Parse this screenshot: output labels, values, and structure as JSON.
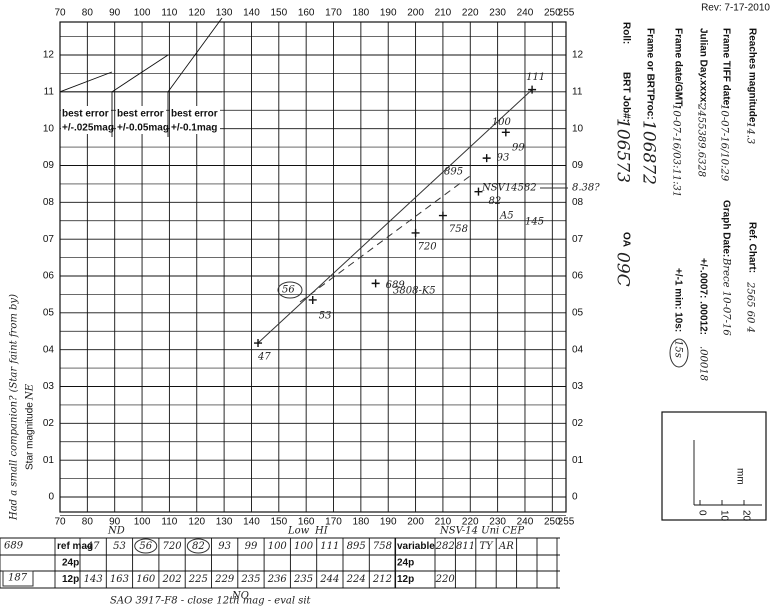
{
  "revision": "Rev: 7-17-2010",
  "form": {
    "roll_label": "Roll:",
    "job_label": "BRT Job#:",
    "job": "106573",
    "oa_label": "OA",
    "oa": "09C",
    "frame_label": "Frame or BRTProc:",
    "frame": "106872",
    "date_label": "Frame date/GMT:",
    "date": "10-07-16/03:11:31",
    "min_label": "+/-1 min: 10s:",
    "min": "15s",
    "jd_label": "Julian Day.xxxx:",
    "jd": "2455389.6328",
    "jd_err_label": "+/-.0007: .00012:",
    "jd_err": ".00018",
    "tiff_label": "Frame TIFF date:",
    "tiff": "10-07-16/10:29",
    "graph_label": "Graph Date:",
    "graph": "Brece 10-07-16",
    "reach_label": "Reaches magnitude:",
    "reach": "14.3",
    "chart_label": "Ref. Chart:",
    "chart": "2565 60 4"
  },
  "scale_box": {
    "unit": "mm",
    "ticks": [
      "0",
      "10",
      "20"
    ]
  },
  "plot": {
    "xticks": [
      70,
      80,
      90,
      100,
      110,
      120,
      130,
      140,
      150,
      160,
      170,
      180,
      190,
      200,
      210,
      220,
      230,
      240,
      250,
      255
    ],
    "yticks": [
      12,
      11,
      10,
      {
        "value": 9,
        "label": "09"
      },
      {
        "value": 8,
        "label": "08"
      },
      {
        "value": 7,
        "label": "07"
      },
      {
        "value": 6,
        "label": "06"
      },
      {
        "value": 5,
        "label": "05"
      },
      {
        "value": 4,
        "label": "04"
      },
      {
        "value": 3,
        "label": "03"
      },
      {
        "value": 2,
        "label": "02"
      },
      {
        "value": 1,
        "label": "01"
      },
      0
    ],
    "y_label": "Star magnitude",
    "y_note": "NE",
    "side_note": "Had a small companion? (Star faint from by)",
    "error_labels": [
      {
        "title": "best error",
        "value": "+/-.025mag"
      },
      {
        "title": "best error",
        "value": "+/-0.05mag"
      },
      {
        "title": "best error",
        "value": "+/-0.1mag"
      }
    ],
    "points": [
      {
        "x": 142.4,
        "y": 4.18,
        "label": "47"
      },
      {
        "x": 162.4,
        "y": 5.35,
        "label": "53"
      },
      {
        "x": 185.4,
        "y": 5.8,
        "label": "689"
      },
      {
        "x": 200,
        "y": 7.17,
        "label": "720"
      },
      {
        "x": 210,
        "y": 7.64,
        "label": "758"
      },
      {
        "x": 223,
        "y": 8.29,
        "label": "82"
      },
      {
        "x": 226,
        "y": 9.2,
        "label": "93"
      },
      {
        "x": 233,
        "y": 9.9,
        "label": "100"
      },
      {
        "x": 242.6,
        "y": 11.06,
        "label": "111"
      }
    ],
    "annotations": [
      "56",
      "895",
      "99",
      "NSV14582",
      "8.38?",
      "A5",
      "145",
      "3808-K5"
    ]
  },
  "table": {
    "id": "689",
    "id2": "187",
    "header_notes": [
      "ND",
      "Low",
      "HI"
    ],
    "star_note": "NSV-14 Uni CEP",
    "rows": [
      {
        "label": "ref mag",
        "cells": [
          "47",
          "53",
          "56",
          "720",
          "82",
          "93",
          "99",
          "100",
          "100",
          "111",
          "895",
          "758"
        ],
        "var_label": "variable",
        "var_cells": [
          "282",
          "811",
          "TY",
          "AR"
        ]
      },
      {
        "label": "24p",
        "var_label": "24p"
      },
      {
        "label": "12p",
        "cells": [
          "143",
          "163",
          "160",
          "202",
          "225",
          "229",
          "235",
          "236",
          "235",
          "244",
          "224",
          "212"
        ],
        "var_label": "12p",
        "var_cells": [
          "220"
        ]
      }
    ],
    "footer_note": "NO",
    "footer": "SAO 3917-F8 - close 12th mag - eval sit"
  }
}
